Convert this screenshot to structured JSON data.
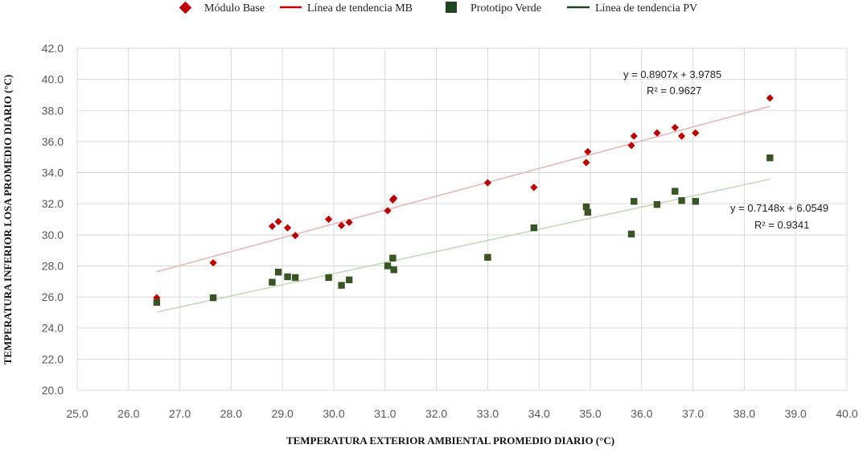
{
  "chart_data": {
    "type": "scatter",
    "title": "",
    "xlabel": "TEMPERATURA EXTERIOR AMBIENTAL PROMEDIO DIARIO (°C)",
    "ylabel": "TEMPERATURA INFERIOR LOSA PROMEDIO DIARIO (°C)",
    "xlim": [
      25.0,
      40.0
    ],
    "ylim": [
      20.0,
      42.0
    ],
    "x_ticks": [
      "25.0",
      "26.0",
      "27.0",
      "28.0",
      "29.0",
      "30.0",
      "31.0",
      "32.0",
      "33.0",
      "34.0",
      "35.0",
      "36.0",
      "37.0",
      "38.0",
      "39.0",
      "40.0"
    ],
    "y_ticks": [
      "20.0",
      "22.0",
      "24.0",
      "26.0",
      "28.0",
      "30.0",
      "32.0",
      "34.0",
      "36.0",
      "38.0",
      "40.0",
      "42.0"
    ],
    "grid": true,
    "legend_position": "top",
    "legend": [
      "Módulo Base",
      "Línea de tendencia MB",
      "Prototipo Verde",
      "Línea de tendencia PV"
    ],
    "series": [
      {
        "name": "Módulo Base",
        "marker": "diamond",
        "color": "#C00000",
        "points": [
          [
            26.55,
            25.95
          ],
          [
            27.65,
            28.2
          ],
          [
            28.8,
            30.55
          ],
          [
            28.92,
            30.85
          ],
          [
            29.1,
            30.45
          ],
          [
            29.25,
            29.95
          ],
          [
            29.9,
            31.0
          ],
          [
            30.15,
            30.6
          ],
          [
            30.3,
            30.8
          ],
          [
            31.05,
            31.55
          ],
          [
            31.15,
            32.25
          ],
          [
            31.17,
            32.35
          ],
          [
            33.0,
            33.35
          ],
          [
            33.9,
            33.05
          ],
          [
            34.92,
            34.65
          ],
          [
            34.95,
            35.35
          ],
          [
            35.8,
            35.75
          ],
          [
            35.85,
            36.35
          ],
          [
            36.3,
            36.55
          ],
          [
            36.65,
            36.9
          ],
          [
            36.78,
            36.35
          ],
          [
            37.05,
            36.55
          ],
          [
            38.5,
            38.8
          ]
        ]
      },
      {
        "name": "Prototipo Verde",
        "marker": "square",
        "color": "#375623",
        "points": [
          [
            26.55,
            25.65
          ],
          [
            27.65,
            25.95
          ],
          [
            28.8,
            26.95
          ],
          [
            28.92,
            27.6
          ],
          [
            29.1,
            27.3
          ],
          [
            29.25,
            27.25
          ],
          [
            29.9,
            27.25
          ],
          [
            30.15,
            26.75
          ],
          [
            30.3,
            27.1
          ],
          [
            31.05,
            28.0
          ],
          [
            31.15,
            28.5
          ],
          [
            31.17,
            27.75
          ],
          [
            33.0,
            28.55
          ],
          [
            33.9,
            30.45
          ],
          [
            34.92,
            31.8
          ],
          [
            34.95,
            31.45
          ],
          [
            35.8,
            30.05
          ],
          [
            35.85,
            32.15
          ],
          [
            36.3,
            31.95
          ],
          [
            36.65,
            32.8
          ],
          [
            36.78,
            32.2
          ],
          [
            37.05,
            32.15
          ],
          [
            38.5,
            34.95
          ]
        ]
      }
    ],
    "trendlines": [
      {
        "name": "Línea de tendencia MB",
        "slope": 0.8907,
        "intercept": 3.9785,
        "x_range": [
          26.55,
          38.5
        ],
        "color": "#C00000",
        "equation": "y = 0.8907x + 3.9785",
        "r2": "R² = 0.9627"
      },
      {
        "name": "Línea de tendencia PV",
        "slope": 0.7148,
        "intercept": 6.0549,
        "x_range": [
          26.55,
          38.5
        ],
        "color": "#375623",
        "equation": "y = 0.7148x + 6.0549",
        "r2": "R² = 0.9341"
      }
    ]
  }
}
